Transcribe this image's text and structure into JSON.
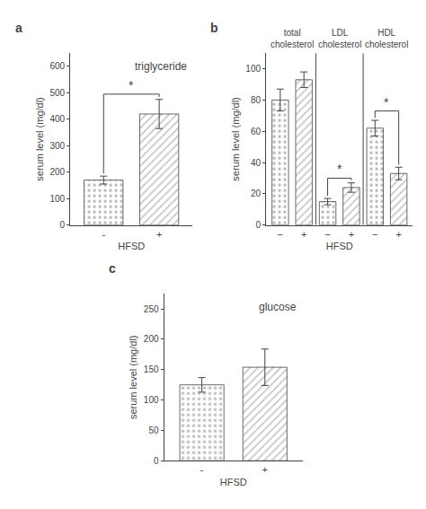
{
  "chart_data": [
    {
      "type": "bar",
      "panel_label": "a",
      "title": "triglyceride",
      "xlabel": "HFSD",
      "ylabel": "serum level (mg/dl)",
      "categories": [
        "-",
        "+"
      ],
      "values": [
        170,
        420
      ],
      "errors": [
        15,
        55
      ],
      "colors": [
        "#b8b8b8",
        "#c0c0c0"
      ],
      "ylim": [
        0,
        650
      ],
      "yticks": [
        0,
        100,
        200,
        300,
        400,
        500,
        600
      ],
      "grid": false,
      "annotations": [
        {
          "text": "*",
          "x": [
            0,
            1
          ],
          "y": 495
        }
      ]
    },
    {
      "type": "bar",
      "panel_label": "b",
      "xlabel": "HFSD",
      "ylabel": "serum level (mg/dl)",
      "group_labels": [
        "total\ncholesterol",
        "LDL\ncholesterol",
        "HDL\ncholesterol"
      ],
      "categories": [
        "−",
        "+",
        "−",
        "+",
        "−",
        "+"
      ],
      "values": [
        80,
        93,
        15,
        24,
        62,
        33
      ],
      "errors": [
        7,
        5,
        2,
        3,
        5,
        4
      ],
      "colors": [
        "#b8b8b8",
        "#c0c0c0",
        "#b8b8b8",
        "#c0c0c0",
        "#b8b8b8",
        "#c0c0c0"
      ],
      "ylim": [
        0,
        110
      ],
      "yticks": [
        0,
        20,
        40,
        60,
        80,
        100
      ],
      "grid": false,
      "annotations": [
        {
          "text": "*",
          "x": [
            2,
            3
          ],
          "y": 30
        },
        {
          "text": "*",
          "x": [
            4,
            5
          ],
          "y": 73
        }
      ]
    },
    {
      "type": "bar",
      "panel_label": "c",
      "title": "glucose",
      "xlabel": "HFSD",
      "ylabel": "serum level (mg/dl)",
      "categories": [
        "-",
        "+"
      ],
      "values": [
        125,
        154
      ],
      "errors": [
        12,
        30
      ],
      "colors": [
        "#b8b8b8",
        "#c0c0c0"
      ],
      "ylim": [
        0,
        275
      ],
      "yticks": [
        0,
        50,
        100,
        150,
        200,
        250
      ],
      "grid": false
    }
  ]
}
